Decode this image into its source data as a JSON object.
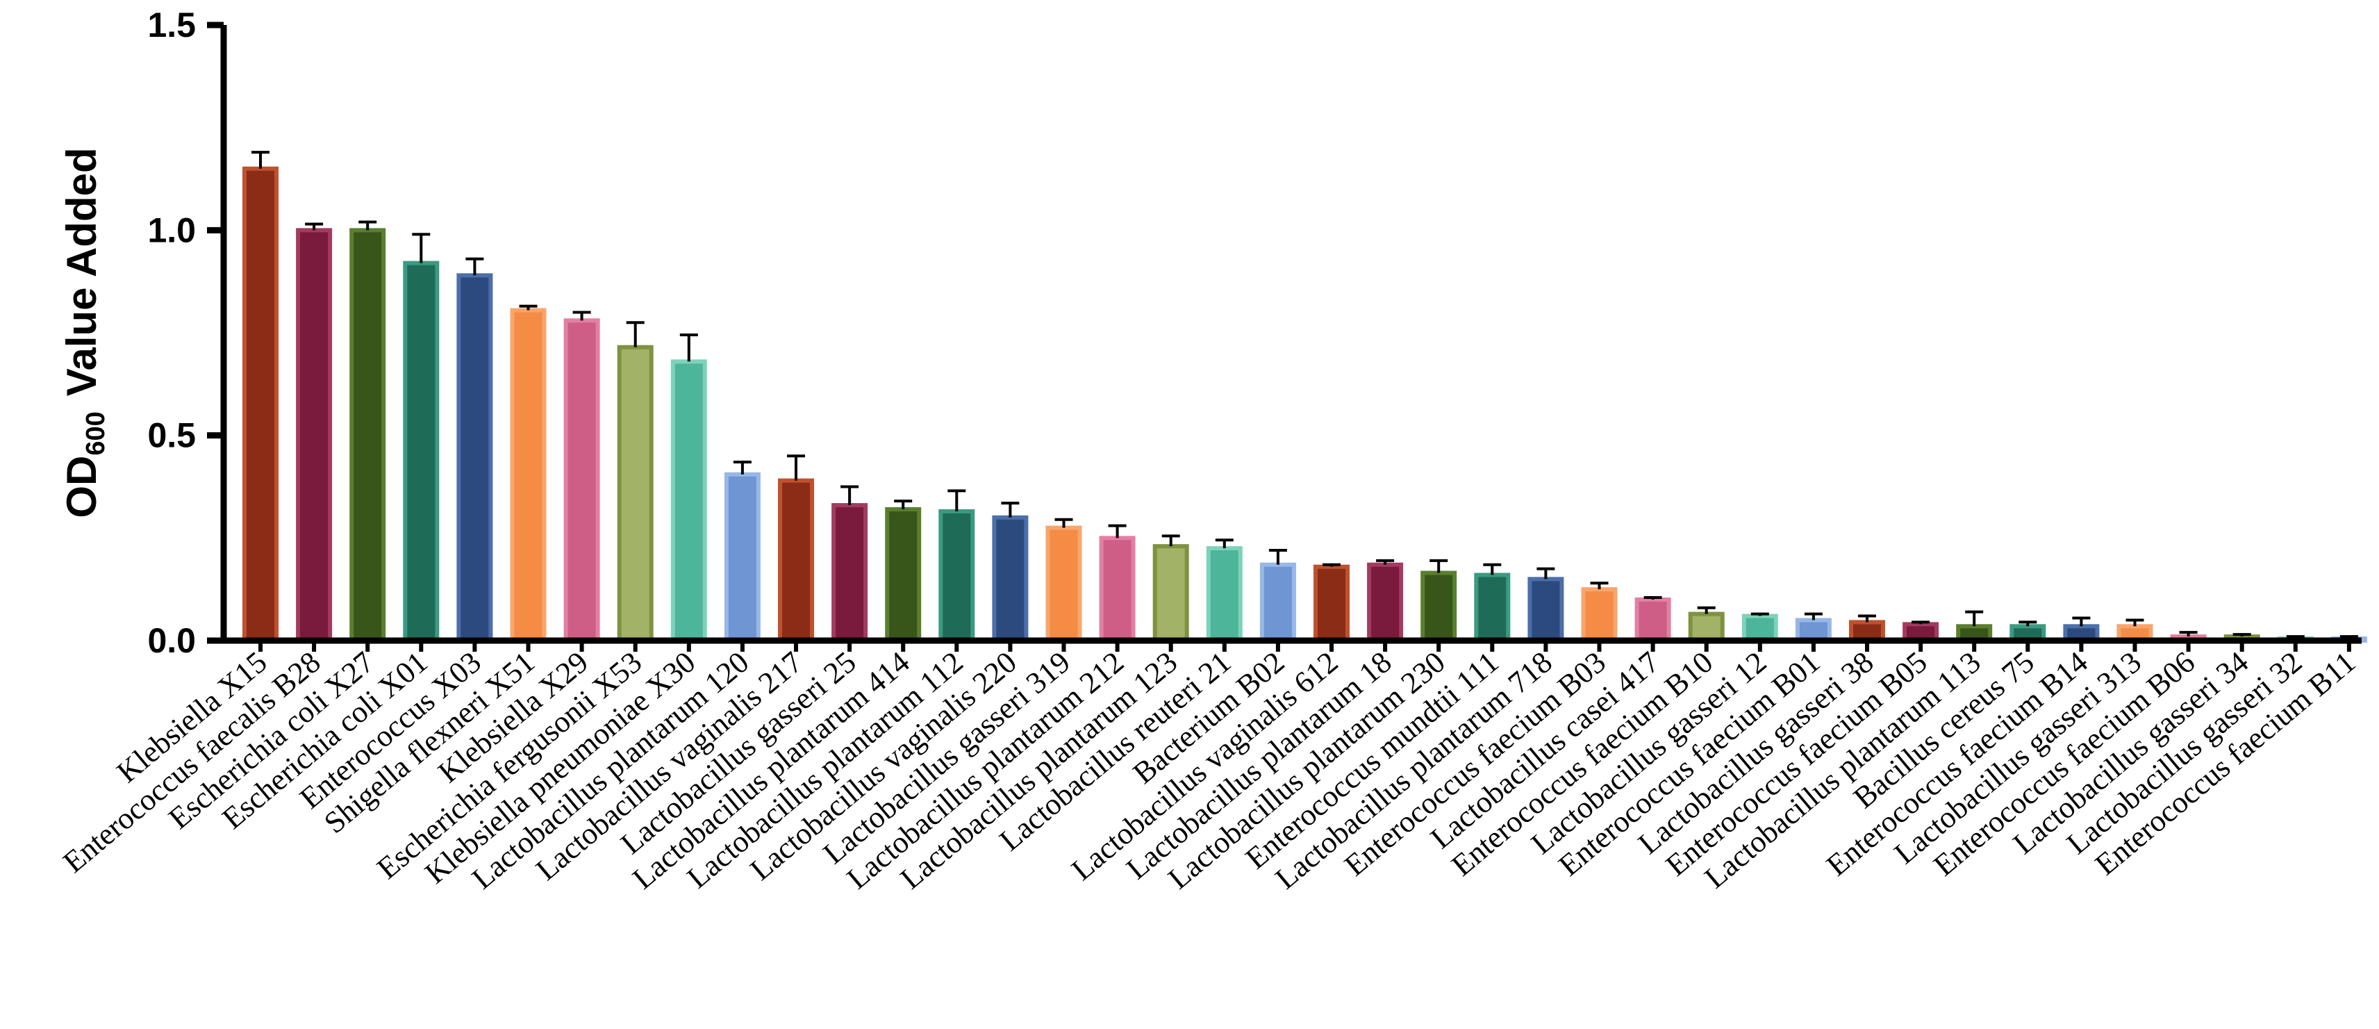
{
  "chart_data": {
    "type": "bar",
    "title": "",
    "xlabel": "",
    "ylabel": {
      "prefix": "OD",
      "subscript": "600",
      "suffix": "Value Added"
    },
    "ylim": [
      0,
      1.5
    ],
    "yticks": [
      "0.0",
      "0.5",
      "1.0",
      "1.5"
    ],
    "grid": false,
    "legend": "none",
    "categories": [
      "Klebsiella X15",
      "Enterococcus faecalis B28",
      "Escherichia coli X27",
      "Escherichia coli X01",
      "Enterococcus X03",
      "Shigella flexneri X51",
      "Klebsiella X29",
      "Escherichia fergusonii X53",
      "Klebsiella pneumoniae X30",
      "Lactobacillus plantarum 120",
      "Lactobacillus vaginalis 217",
      "Lactobacillus gasseri 25",
      "Lactobacillus plantarum 414",
      "Lactobacillus plantarum 112",
      "Lactobacillus vaginalis 220",
      "Lactobacillus gasseri 319",
      "Lactobacillus plantarum 212",
      "Lactobacillus plantarum 123",
      "Lactobacillus reuteri 21",
      "Bacterium B02",
      "Lactobacillus vaginalis 612",
      "Lactobacillus plantarum 18",
      "Lactobacillus plantarum 230",
      "Enterococcus mundtii 111",
      "Lactobacillus plantarum 718",
      "Enterococcus faecium B03",
      "Lactobacillus casei 417",
      "Enterococcus faecium B10",
      "Lactobacillus gasseri 12",
      "Enterococcus faecium B01",
      "Lactobacillus gasseri 38",
      "Enterococcus faecium B05",
      "Lactobacillus plantarum 113",
      "Bacillus cereus 75",
      "Enterococcus faecium B14",
      "Lactobacillus gasseri 313",
      "Enterococcus faecium B06",
      "Lactobacillus gasseri 34",
      "Lactobacillus gasseri 32",
      "Enterococcus faecium B11"
    ],
    "values": [
      1.15,
      1.0,
      1.0,
      0.92,
      0.89,
      0.805,
      0.78,
      0.715,
      0.68,
      0.405,
      0.39,
      0.33,
      0.32,
      0.315,
      0.3,
      0.275,
      0.25,
      0.23,
      0.225,
      0.185,
      0.18,
      0.185,
      0.165,
      0.16,
      0.15,
      0.125,
      0.1,
      0.065,
      0.06,
      0.05,
      0.045,
      0.04,
      0.035,
      0.035,
      0.035,
      0.035,
      0.01,
      0.01,
      0.005,
      0.005
    ],
    "errors": [
      0.04,
      0.015,
      0.02,
      0.07,
      0.04,
      0.01,
      0.02,
      0.06,
      0.065,
      0.03,
      0.06,
      0.045,
      0.02,
      0.05,
      0.035,
      0.02,
      0.03,
      0.025,
      0.02,
      0.035,
      0.005,
      0.01,
      0.03,
      0.025,
      0.025,
      0.015,
      0.005,
      0.015,
      0.005,
      0.015,
      0.015,
      0.005,
      0.035,
      0.01,
      0.02,
      0.015,
      0.01,
      0.005,
      0.005,
      0.005
    ],
    "colors": {
      "palette": [
        {
          "fill": "#8B2D16",
          "edge": "#C0502E"
        },
        {
          "fill": "#7A1A3C",
          "edge": "#A33A60"
        },
        {
          "fill": "#38561A",
          "edge": "#5A7F2E"
        },
        {
          "fill": "#1E6B58",
          "edge": "#3B9A82"
        },
        {
          "fill": "#2C4A7E",
          "edge": "#4A6FAA"
        },
        {
          "fill": "#F58C45",
          "edge": "#F8A56C"
        },
        {
          "fill": "#CE5E85",
          "edge": "#E37FA3"
        },
        {
          "fill": "#A2B266",
          "edge": "#7F9240"
        },
        {
          "fill": "#4CB59A",
          "edge": "#7DD3BA"
        },
        {
          "fill": "#6F95D2",
          "edge": "#97B7E6"
        }
      ],
      "error_bar": "#000000",
      "axis": "#000000"
    }
  }
}
